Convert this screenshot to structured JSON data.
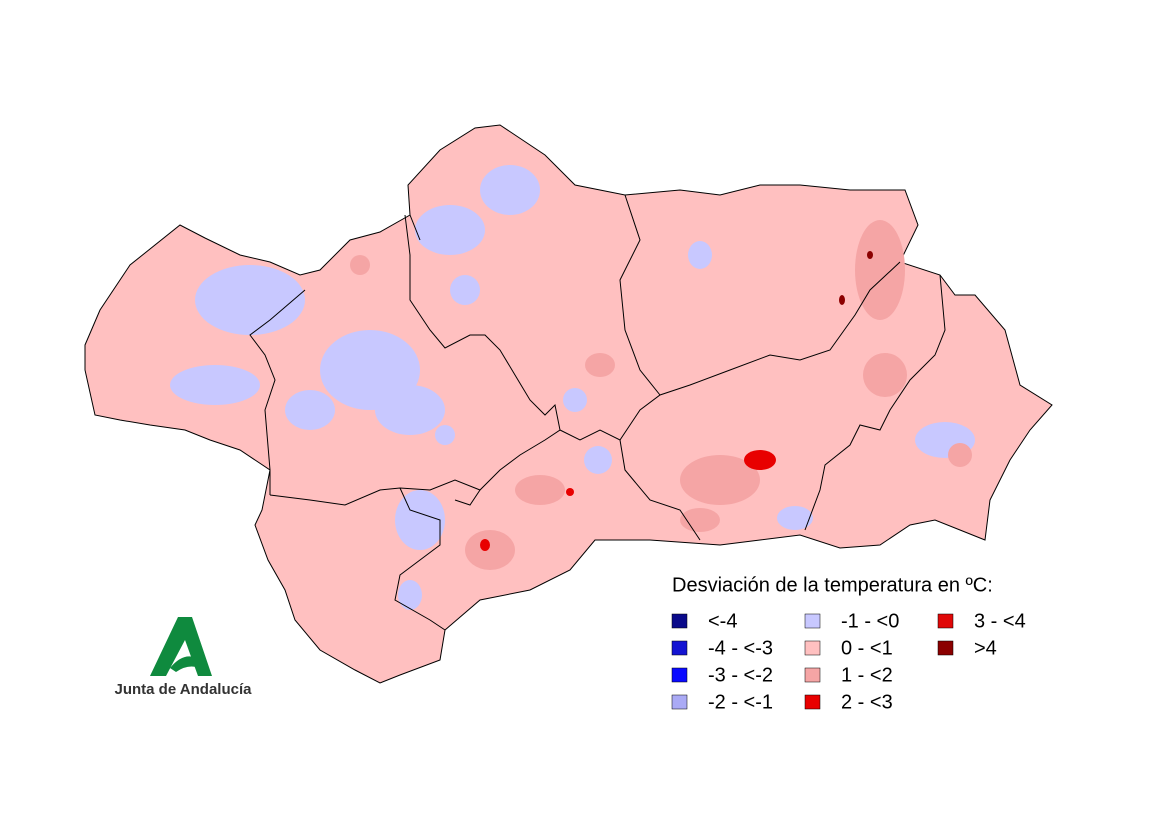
{
  "legend": {
    "title": "Desviación de la temperatura en ºC:",
    "items": [
      {
        "label": "<-4",
        "color": "#0a0a8a"
      },
      {
        "label": "-4 - <-3",
        "color": "#1414d2"
      },
      {
        "label": "-3 - <-2",
        "color": "#0a0aff"
      },
      {
        "label": "-2 - <-1",
        "color": "#aaaaf5"
      },
      {
        "label": "-1 - <0",
        "color": "#c8c8ff"
      },
      {
        "label": "0 - <1",
        "color": "#ffc0c0"
      },
      {
        "label": "1 - <2",
        "color": "#f5a5a5"
      },
      {
        "label": "2 - <3",
        "color": "#e80000"
      },
      {
        "label": "3 - <4",
        "color": "#e00808"
      },
      {
        "label": ">4",
        "color": "#8b0000"
      }
    ]
  },
  "logo": {
    "text": "Junta de Andalucía"
  }
}
